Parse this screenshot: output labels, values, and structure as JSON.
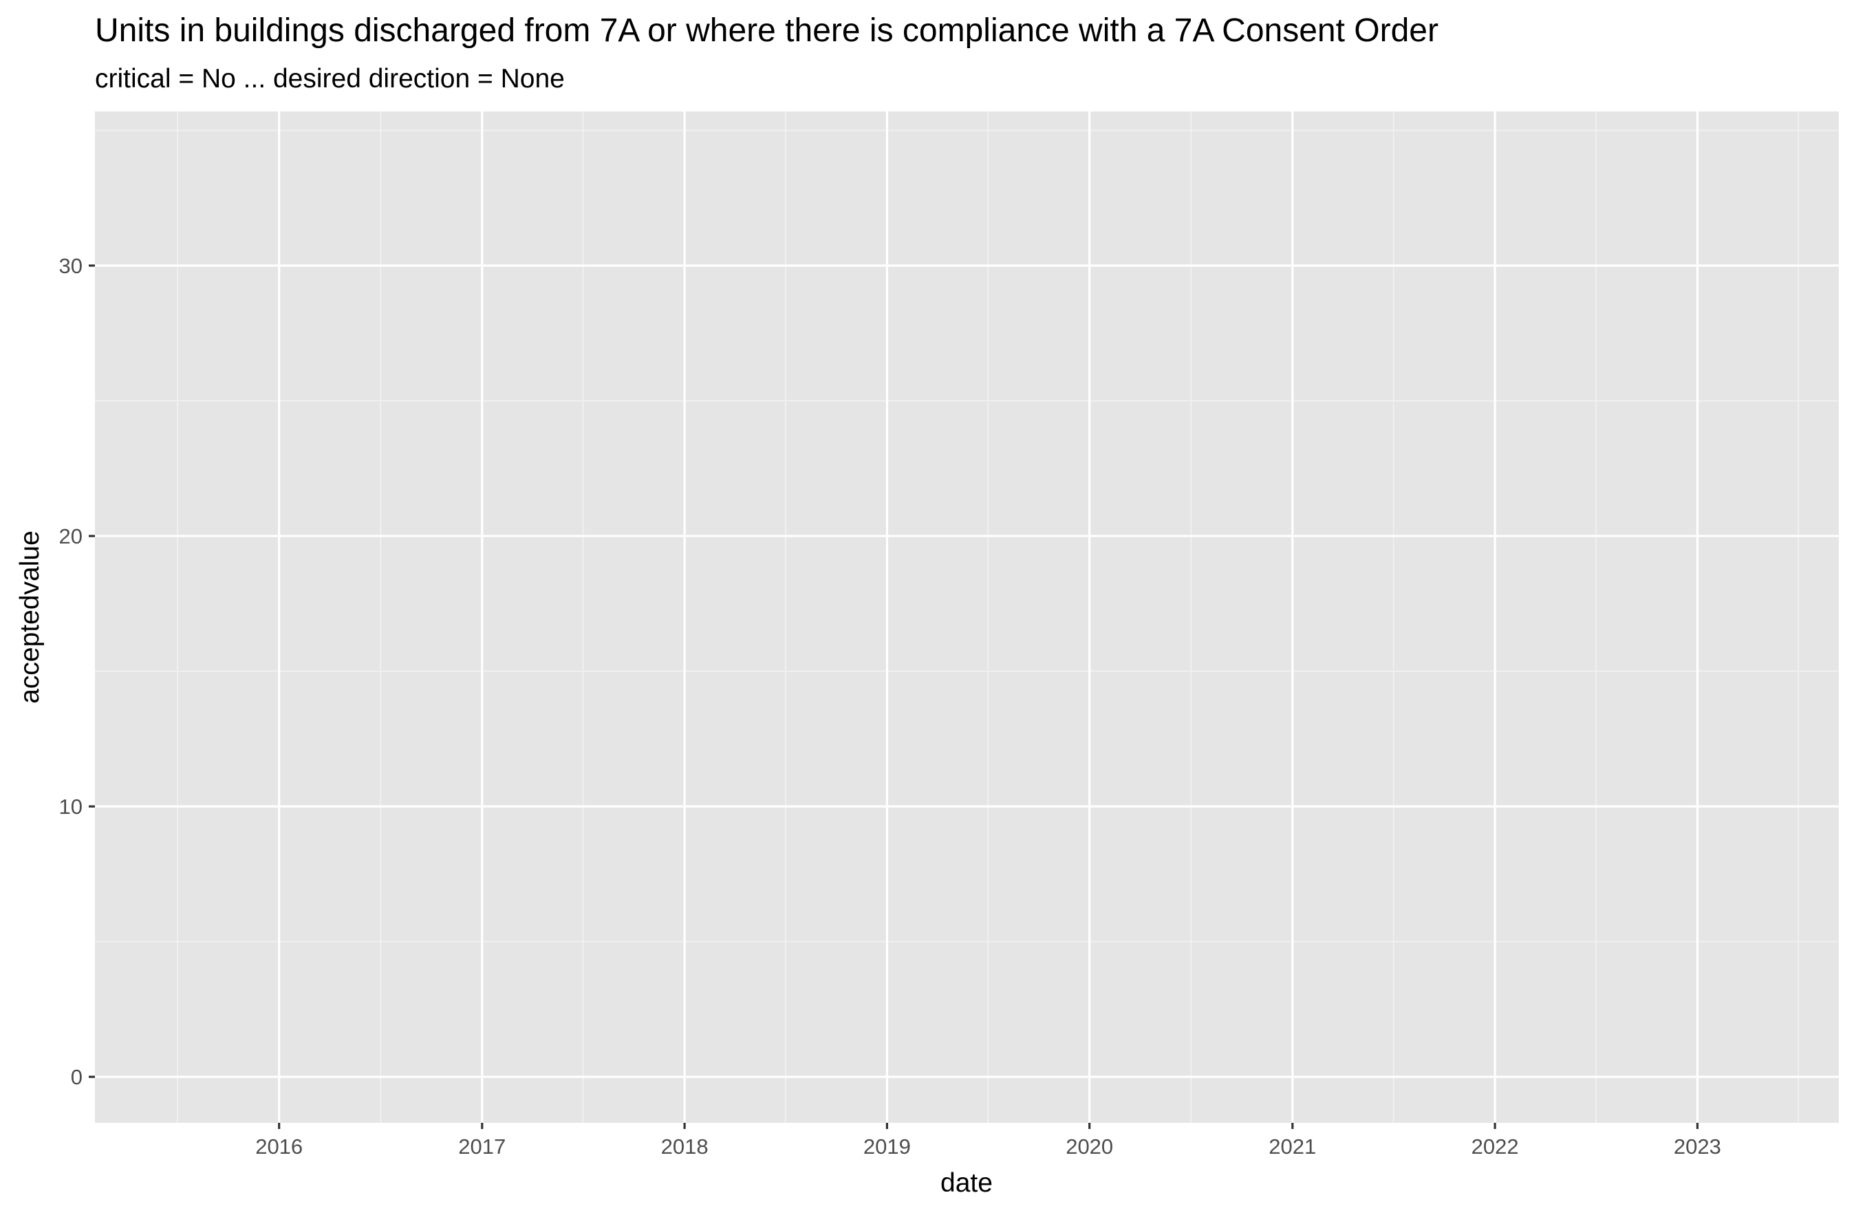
{
  "chart_data": {
    "type": "line",
    "title": "Units in buildings discharged from 7A or where there is compliance with a 7A Consent Order",
    "subtitle": "critical = No ... desired direction = None",
    "xlabel": "date",
    "ylabel": "acceptedvalue",
    "x_axis_type": "date",
    "xlim": [
      "2015-02-03",
      "2023-09-13"
    ],
    "ylim": [
      -1.7,
      35.7
    ],
    "x_ticks": [
      {
        "date": "2016-01-01",
        "label": "2016"
      },
      {
        "date": "2017-01-01",
        "label": "2017"
      },
      {
        "date": "2018-01-01",
        "label": "2018"
      },
      {
        "date": "2019-01-01",
        "label": "2019"
      },
      {
        "date": "2020-01-01",
        "label": "2020"
      },
      {
        "date": "2021-01-01",
        "label": "2021"
      },
      {
        "date": "2022-01-01",
        "label": "2022"
      },
      {
        "date": "2023-01-01",
        "label": "2023"
      }
    ],
    "x_minor_ticks": [
      "2015-07-02",
      "2016-07-02",
      "2017-07-02",
      "2018-07-02",
      "2019-07-02",
      "2020-07-02",
      "2021-07-02",
      "2022-07-02",
      "2023-07-02"
    ],
    "y_ticks": [
      {
        "value": 0,
        "label": "0"
      },
      {
        "value": 10,
        "label": "10"
      },
      {
        "value": 20,
        "label": "20"
      },
      {
        "value": 30,
        "label": "30"
      }
    ],
    "y_minor_ticks": [
      5,
      15,
      25,
      35
    ],
    "grid": true,
    "series": [],
    "colors": {
      "panel_background": "#e5e5e5",
      "grid_major": "#ffffff",
      "grid_minor": "#f2f2f2",
      "tick_label": "#4d4d4d",
      "tick_mark": "#333333"
    }
  }
}
